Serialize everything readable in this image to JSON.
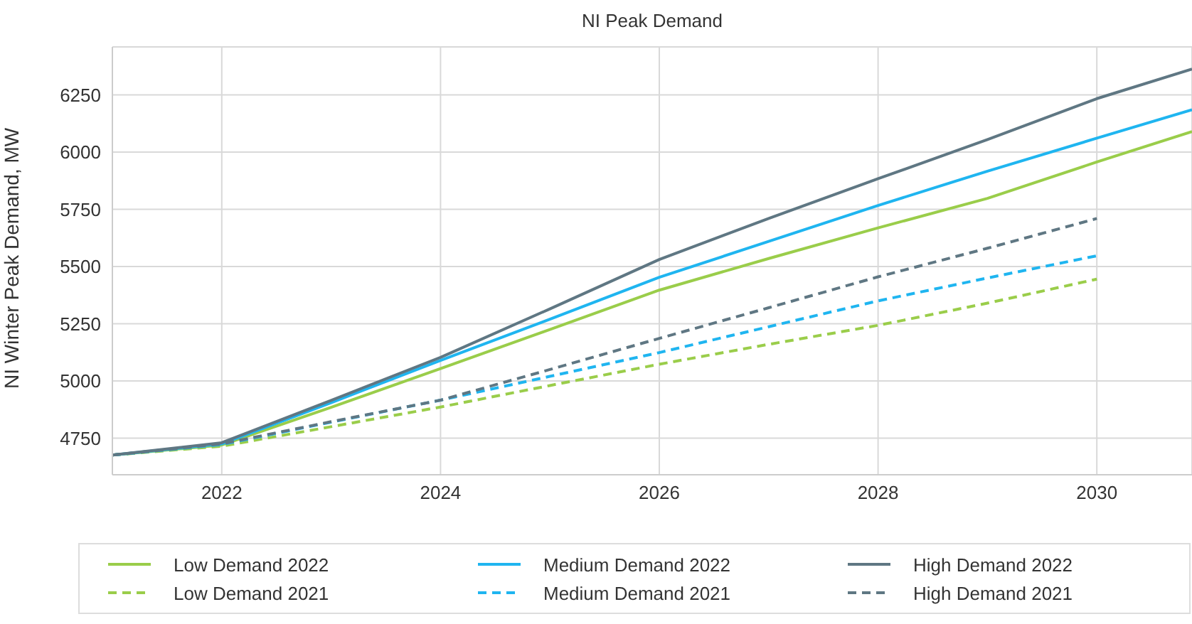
{
  "chart_data": {
    "type": "line",
    "title": "NI Peak Demand",
    "ylabel": "NI Winter Peak Demand, MW",
    "xlim": [
      2021,
      2030.87
    ],
    "xticks": [
      2022,
      2024,
      2026,
      2028,
      2030
    ],
    "ylim": [
      4590,
      6460
    ],
    "yticks": [
      4750,
      5000,
      5250,
      5500,
      5750,
      6000,
      6250
    ],
    "grid": true,
    "legend": "bottom",
    "marker": "none",
    "series": [
      {
        "name": "Low Demand 2022",
        "color": "#9acd4a",
        "line_style": "solid",
        "x": [
          2021,
          2022,
          2023,
          2024,
          2025,
          2026,
          2027,
          2028,
          2029,
          2030,
          2030.87
        ],
        "values": [
          4676,
          4720,
          4885,
          5054,
          5225,
          5397,
          5535,
          5669,
          5798,
          5957,
          6090
        ]
      },
      {
        "name": "Low Demand 2021",
        "color": "#9acd4a",
        "line_style": "dashed",
        "x": [
          2021,
          2022,
          2023,
          2024,
          2025,
          2026,
          2027,
          2028,
          2029,
          2030
        ],
        "values": [
          4676,
          4715,
          4800,
          4886,
          4980,
          5073,
          5160,
          5243,
          5340,
          5445
        ]
      },
      {
        "name": "Medium Demand 2022",
        "color": "#1fb5f0",
        "line_style": "solid",
        "x": [
          2021,
          2022,
          2023,
          2024,
          2025,
          2026,
          2027,
          2028,
          2029,
          2030,
          2030.87
        ],
        "values": [
          4676,
          4725,
          4905,
          5090,
          5270,
          5453,
          5610,
          5767,
          5917,
          6061,
          6185
        ]
      },
      {
        "name": "Medium Demand 2021",
        "color": "#1fb5f0",
        "line_style": "dashed",
        "x": [
          2021,
          2022,
          2023,
          2024,
          2025,
          2026,
          2027,
          2028,
          2029,
          2030
        ],
        "values": [
          4676,
          4722,
          4820,
          4916,
          5020,
          5124,
          5237,
          5350,
          5450,
          5547
        ]
      },
      {
        "name": "High Demand 2022",
        "color": "#5f7783",
        "line_style": "solid",
        "x": [
          2021,
          2022,
          2023,
          2024,
          2025,
          2026,
          2027,
          2028,
          2029,
          2030,
          2030.87
        ],
        "values": [
          4676,
          4730,
          4915,
          5103,
          5315,
          5531,
          5710,
          5884,
          6055,
          6234,
          6363
        ]
      },
      {
        "name": "High Demand 2021",
        "color": "#5f7783",
        "line_style": "dashed",
        "x": [
          2021,
          2022,
          2023,
          2024,
          2025,
          2026,
          2027,
          2028,
          2029,
          2030
        ],
        "values": [
          4676,
          4725,
          4822,
          4916,
          5050,
          5186,
          5320,
          5455,
          5580,
          5710
        ]
      }
    ]
  }
}
